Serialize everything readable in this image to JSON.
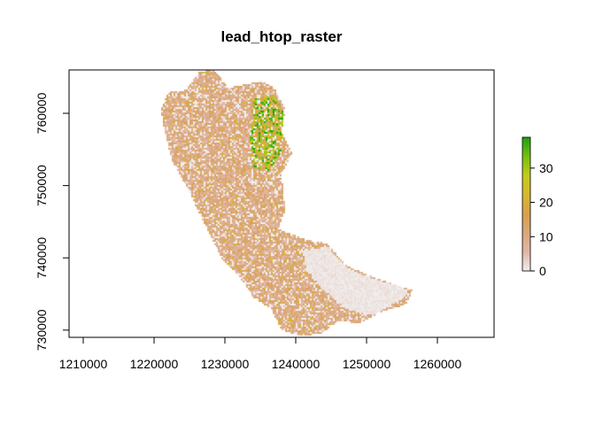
{
  "chart_data": {
    "type": "heatmap",
    "title": "lead_htop_raster",
    "xlabel": "",
    "ylabel": "",
    "xlim": [
      1208000,
      1268000
    ],
    "ylim": [
      729000,
      766000
    ],
    "x_ticks": [
      1210000,
      1220000,
      1230000,
      1240000,
      1250000,
      1260000
    ],
    "x_tick_labels": [
      "1210000",
      "1220000",
      "1230000",
      "1240000",
      "1250000",
      "1260000"
    ],
    "y_ticks": [
      730000,
      740000,
      750000,
      760000
    ],
    "y_tick_labels": [
      "730000",
      "740000",
      "750000",
      "760000"
    ],
    "grid": false,
    "legend": {
      "placement": "right",
      "min": 0,
      "max": 39,
      "ticks": [
        0,
        10,
        20,
        30
      ],
      "tick_labels": [
        "0",
        "10",
        "20",
        "30"
      ],
      "colors": [
        "#f0eeee",
        "#e2b6a6",
        "#dba87c",
        "#d9a14b",
        "#d8b62e",
        "#c4cc1a",
        "#78c010",
        "#20a010"
      ]
    },
    "raster_extent_outline": [
      [
        1222000,
        762900
      ],
      [
        1224500,
        763200
      ],
      [
        1226500,
        765800
      ],
      [
        1228500,
        766000
      ],
      [
        1230500,
        763500
      ],
      [
        1233000,
        764000
      ],
      [
        1235000,
        764500
      ],
      [
        1237000,
        763500
      ],
      [
        1238500,
        760500
      ],
      [
        1238000,
        757500
      ],
      [
        1239500,
        754500
      ],
      [
        1238000,
        751500
      ],
      [
        1238500,
        746500
      ],
      [
        1237500,
        744000
      ],
      [
        1241500,
        742500
      ],
      [
        1244500,
        742000
      ],
      [
        1247000,
        739000
      ],
      [
        1250500,
        737500
      ],
      [
        1253500,
        736500
      ],
      [
        1256500,
        735500
      ],
      [
        1255500,
        733500
      ],
      [
        1252000,
        732500
      ],
      [
        1249000,
        731000
      ],
      [
        1246000,
        731200
      ],
      [
        1243500,
        729500
      ],
      [
        1240500,
        729200
      ],
      [
        1238000,
        730000
      ],
      [
        1236500,
        733000
      ],
      [
        1234000,
        734500
      ],
      [
        1232000,
        737500
      ],
      [
        1229500,
        740000
      ],
      [
        1228000,
        743000
      ],
      [
        1226000,
        747000
      ],
      [
        1224500,
        750000
      ],
      [
        1222500,
        753500
      ],
      [
        1221500,
        757500
      ],
      [
        1221000,
        760500
      ]
    ],
    "bare_zone_outline": [
      [
        1241000,
        741000
      ],
      [
        1244500,
        741500
      ],
      [
        1247500,
        738500
      ],
      [
        1251000,
        737000
      ],
      [
        1254500,
        736200
      ],
      [
        1256000,
        735000
      ],
      [
        1253500,
        733500
      ],
      [
        1251000,
        732000
      ],
      [
        1247000,
        733000
      ],
      [
        1243500,
        736000
      ],
      [
        1241500,
        738500
      ]
    ],
    "high_zone_outline": [
      [
        1234000,
        762000
      ],
      [
        1237000,
        762500
      ],
      [
        1238500,
        759500
      ],
      [
        1238000,
        755000
      ],
      [
        1236500,
        752000
      ],
      [
        1234000,
        752500
      ],
      [
        1233500,
        756000
      ]
    ],
    "value_summary": {
      "bare_zone_typical": 1,
      "main_typical": 10,
      "high_zone_typical": 25
    }
  }
}
